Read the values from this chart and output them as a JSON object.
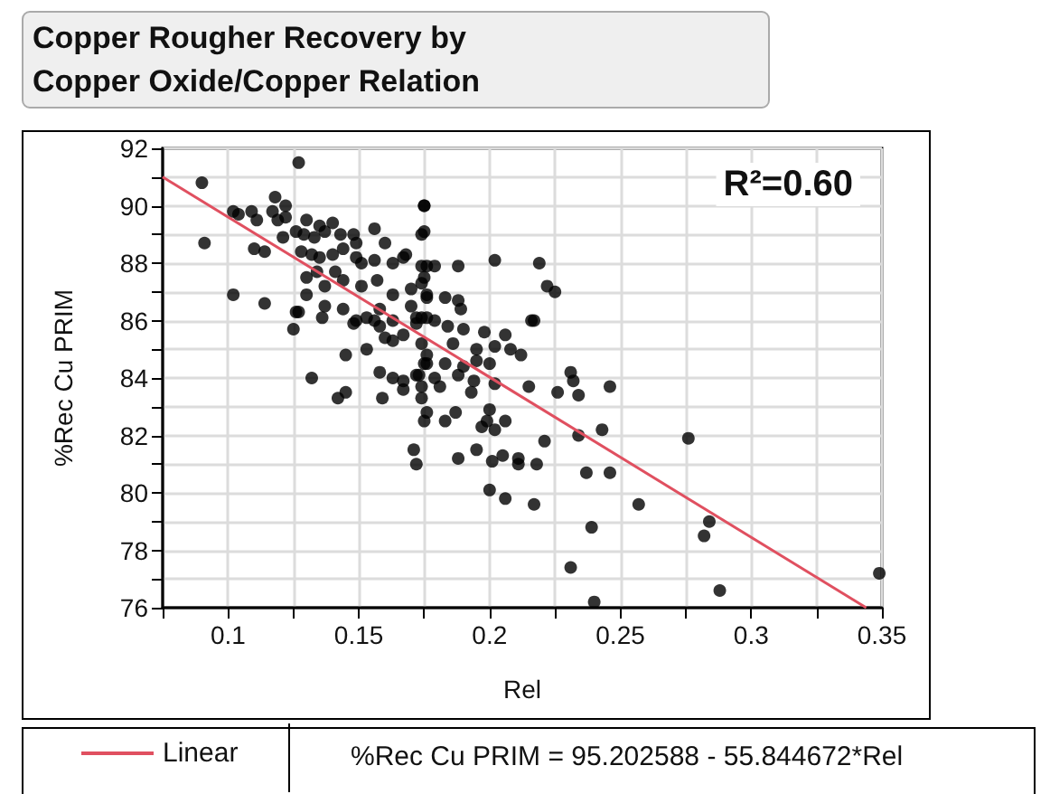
{
  "chart_data": {
    "type": "scatter",
    "title": "Copper Rougher Recovery by\nCopper Oxide/Copper Relation",
    "xlabel": "Rel",
    "ylabel": "%Rec Cu PRIM",
    "annotations": [
      "R²=0.60",
      "%Rec Cu PRIM = 95.202588 - 55.844672*Rel"
    ],
    "xlim": [
      0.075,
      0.35
    ],
    "ylim": [
      76,
      92
    ],
    "xticks": [
      {
        "value": 0.075,
        "label": null
      },
      0.1,
      {
        "value": 0.125,
        "label": null
      },
      0.15,
      {
        "value": 0.175,
        "label": null
      },
      0.2,
      {
        "value": 0.225,
        "label": null
      },
      0.25,
      {
        "value": 0.275,
        "label": null
      },
      0.3,
      {
        "value": 0.325,
        "label": null
      },
      0.35
    ],
    "yticks": [
      76,
      {
        "value": 77,
        "label": null
      },
      78,
      {
        "value": 79,
        "label": null
      },
      80,
      {
        "value": 81,
        "label": null
      },
      82,
      {
        "value": 83,
        "label": null
      },
      84,
      {
        "value": 85,
        "label": null
      },
      86,
      {
        "value": 87,
        "label": null
      },
      88,
      {
        "value": 89,
        "label": null
      },
      90,
      {
        "value": 91,
        "label": null
      },
      92
    ],
    "grid": true,
    "legend": "bottom left",
    "marker": "circle",
    "series": [
      {
        "color": "#000000",
        "x": [
          0.127,
          0.09,
          0.091,
          0.102,
          0.104,
          0.109,
          0.111,
          0.117,
          0.118,
          0.122,
          0.119,
          0.122,
          0.11,
          0.114,
          0.121,
          0.126,
          0.13,
          0.135,
          0.14,
          0.129,
          0.133,
          0.137,
          0.143,
          0.148,
          0.149,
          0.156,
          0.16,
          0.168,
          0.174,
          0.175,
          0.128,
          0.132,
          0.135,
          0.14,
          0.144,
          0.149,
          0.151,
          0.156,
          0.163,
          0.167,
          0.174,
          0.13,
          0.134,
          0.141,
          0.137,
          0.144,
          0.151,
          0.157,
          0.163,
          0.17,
          0.175,
          0.102,
          0.114,
          0.13,
          0.137,
          0.144,
          0.126,
          0.158,
          0.17,
          0.176,
          0.149,
          0.156,
          0.163,
          0.172,
          0.127,
          0.125,
          0.136,
          0.148,
          0.153,
          0.158,
          0.16,
          0.163,
          0.167,
          0.172,
          0.174,
          0.176,
          0.153,
          0.145,
          0.132,
          0.158,
          0.163,
          0.167,
          0.172,
          0.175,
          0.176,
          0.142,
          0.145,
          0.159,
          0.167,
          0.174,
          0.176,
          0.171,
          0.175,
          0.175,
          0.176,
          0.179,
          0.188,
          0.202,
          0.219,
          0.222,
          0.225,
          0.174,
          0.176,
          0.183,
          0.188,
          0.189,
          0.217,
          0.216,
          0.174,
          0.179,
          0.184,
          0.19,
          0.198,
          0.206,
          0.186,
          0.195,
          0.202,
          0.208,
          0.212,
          0.176,
          0.183,
          0.19,
          0.195,
          0.2,
          0.173,
          0.179,
          0.188,
          0.194,
          0.202,
          0.174,
          0.181,
          0.193,
          0.215,
          0.226,
          0.231,
          0.232,
          0.234,
          0.246,
          0.2,
          0.175,
          0.183,
          0.187,
          0.197,
          0.202,
          0.206,
          0.199,
          0.234,
          0.243,
          0.221,
          0.276,
          0.172,
          0.188,
          0.195,
          0.201,
          0.205,
          0.211,
          0.211,
          0.218,
          0.237,
          0.246,
          0.2,
          0.206,
          0.217,
          0.257,
          0.284,
          0.282,
          0.239,
          0.231,
          0.24,
          0.288,
          0.349
        ],
        "values": [
          91.5,
          90.8,
          88.7,
          89.8,
          89.7,
          89.8,
          89.5,
          89.8,
          90.3,
          90.0,
          89.5,
          89.6,
          88.5,
          88.4,
          88.9,
          89.1,
          89.5,
          89.3,
          89.4,
          89.0,
          88.9,
          89.1,
          89.0,
          89.0,
          88.7,
          89.2,
          88.7,
          88.3,
          89.0,
          90.0,
          88.4,
          88.3,
          88.2,
          88.3,
          88.5,
          88.2,
          88.0,
          88.1,
          88.0,
          88.2,
          87.9,
          87.5,
          87.7,
          87.7,
          87.2,
          87.4,
          87.2,
          87.4,
          86.9,
          87.1,
          87.5,
          86.9,
          86.6,
          86.9,
          86.5,
          86.4,
          86.3,
          86.4,
          86.5,
          86.8,
          86.0,
          86.0,
          86.0,
          86.1,
          86.3,
          85.7,
          86.1,
          85.9,
          86.1,
          85.8,
          85.4,
          85.3,
          85.5,
          85.9,
          85.2,
          86.1,
          85.0,
          84.8,
          84.0,
          84.2,
          84.0,
          83.9,
          84.1,
          84.5,
          84.8,
          83.3,
          83.5,
          83.3,
          83.6,
          83.3,
          82.8,
          81.5,
          90.0,
          89.1,
          87.9,
          87.9,
          87.9,
          88.1,
          88.0,
          87.2,
          87.0,
          87.3,
          86.9,
          86.8,
          86.7,
          86.4,
          86.0,
          86.0,
          86.1,
          86.0,
          85.8,
          85.7,
          85.6,
          85.5,
          85.2,
          85.0,
          85.1,
          85.0,
          84.8,
          84.5,
          84.5,
          84.4,
          84.6,
          84.5,
          84.1,
          84.0,
          84.1,
          83.9,
          83.8,
          83.7,
          83.7,
          83.5,
          83.7,
          83.5,
          84.2,
          83.9,
          83.4,
          83.7,
          82.9,
          82.5,
          82.5,
          82.8,
          82.3,
          82.2,
          82.5,
          82.5,
          82.0,
          82.2,
          81.8,
          81.9,
          81.0,
          81.2,
          81.5,
          81.1,
          81.3,
          81.2,
          81.0,
          81.0,
          80.7,
          80.7,
          80.1,
          79.8,
          79.6,
          79.6,
          79.0,
          78.5,
          78.8,
          77.4,
          76.2,
          76.6,
          77.2
        ]
      },
      {
        "name": "Linear",
        "type": "line",
        "color": "#e05060",
        "marker": "none",
        "x": [
          0.075,
          0.344
        ],
        "values": [
          91.0,
          76.0
        ]
      }
    ]
  }
}
